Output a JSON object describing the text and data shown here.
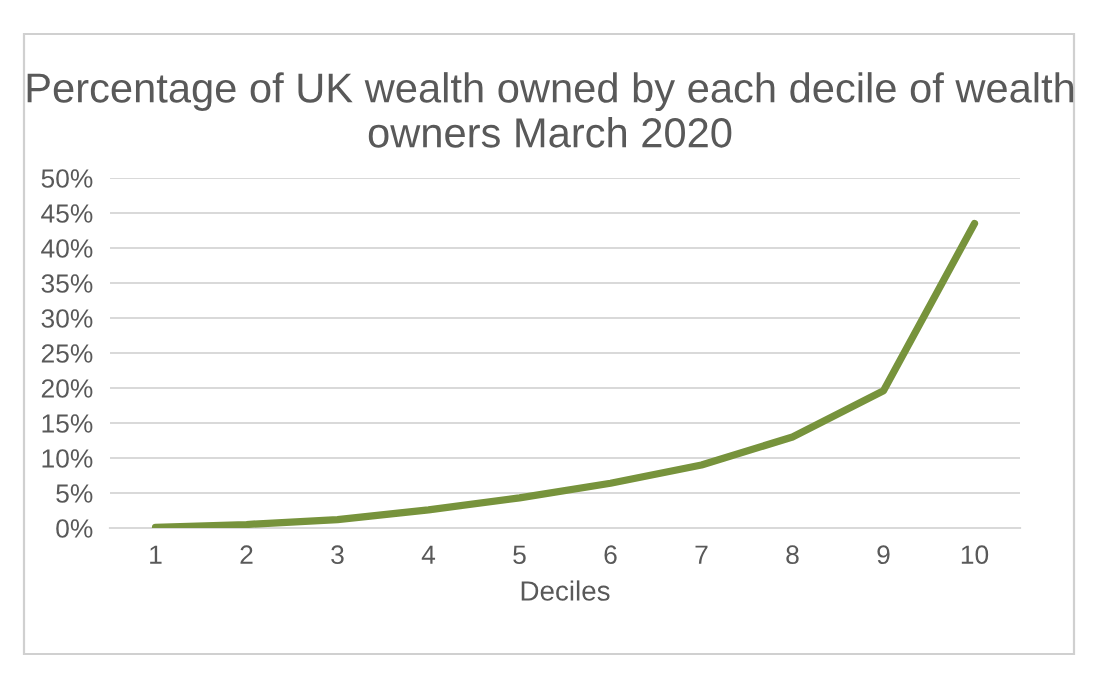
{
  "chart_data": {
    "type": "line",
    "title": "Percentage of UK wealth owned by each decile of wealth owners March 2020",
    "xlabel": "Deciles",
    "categories": [
      "1",
      "2",
      "3",
      "4",
      "5",
      "6",
      "7",
      "8",
      "9",
      "10"
    ],
    "series": [
      {
        "color": "#77933c",
        "values": [
          0.1,
          0.5,
          1.2,
          2.6,
          4.3,
          6.4,
          9,
          13,
          19.6,
          43.5
        ]
      }
    ],
    "ylim": [
      0,
      50
    ],
    "yticks": [
      {
        "value": 0,
        "label": "0%"
      },
      {
        "value": 5,
        "label": "5%"
      },
      {
        "value": 10,
        "label": "10%"
      },
      {
        "value": 15,
        "label": "15%"
      },
      {
        "value": 20,
        "label": "20%"
      },
      {
        "value": 25,
        "label": "25%"
      },
      {
        "value": 30,
        "label": "30%"
      },
      {
        "value": 35,
        "label": "35%"
      },
      {
        "value": 40,
        "label": "40%"
      },
      {
        "value": 45,
        "label": "45%"
      },
      {
        "value": 50,
        "label": "50%"
      }
    ],
    "grid": "y",
    "line_style": "solid"
  }
}
